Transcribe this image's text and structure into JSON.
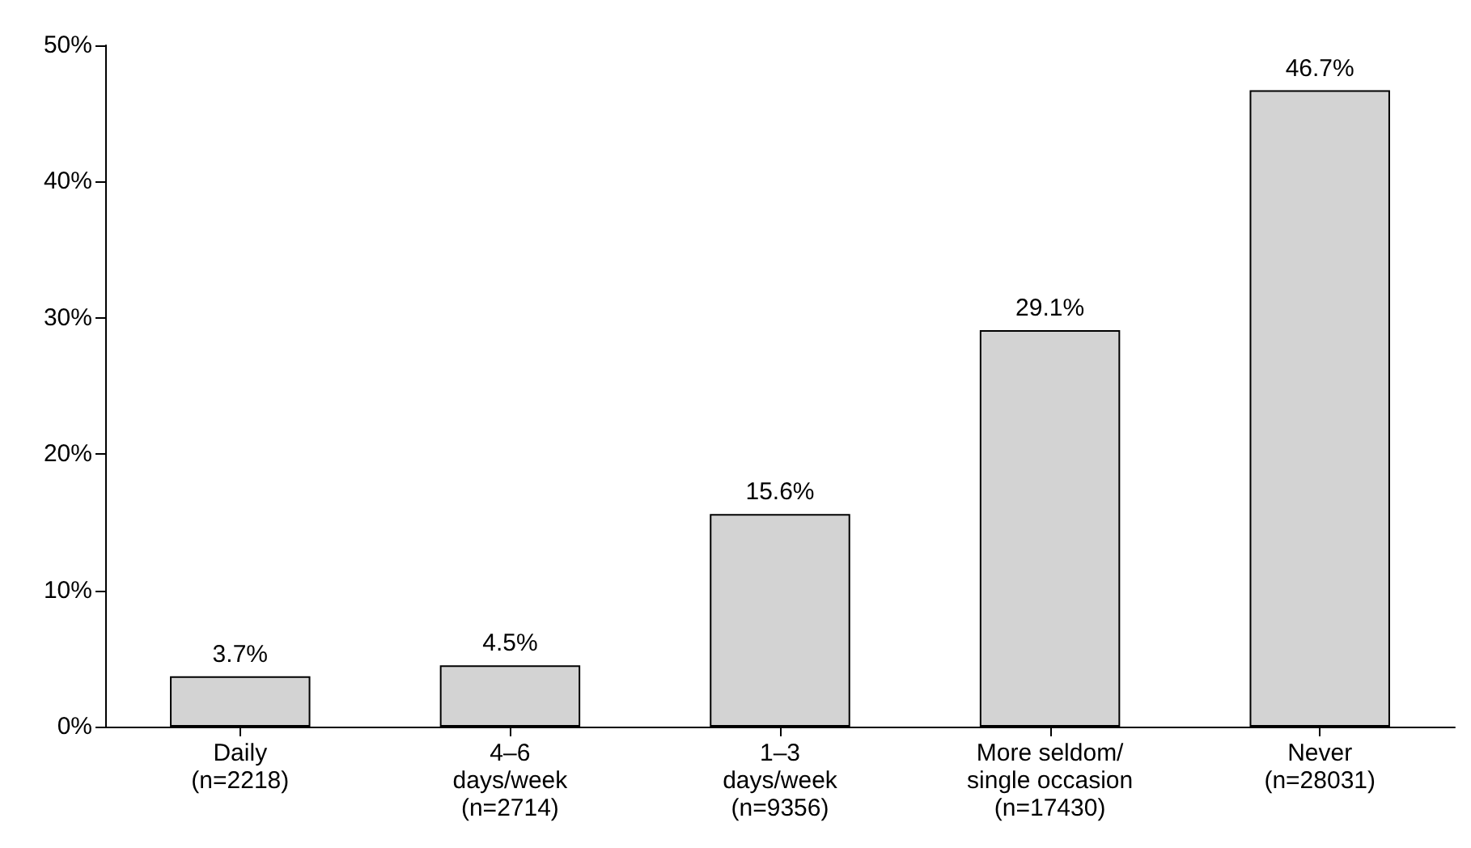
{
  "chart_data": {
    "type": "bar",
    "categories": [
      "Daily\n(n=2218)",
      "4–6\ndays/week\n(n=2714)",
      "1–3\ndays/week\n(n=9356)",
      "More seldom/\nsingle occasion\n(n=17430)",
      "Never\n(n=28031)"
    ],
    "values": [
      3.7,
      4.5,
      15.6,
      29.1,
      46.7
    ],
    "value_labels": [
      "3.7%",
      "4.5%",
      "15.6%",
      "29.1%",
      "46.7%"
    ],
    "color": "#d3d3d3",
    "ylim": [
      0,
      50
    ],
    "yticks": [
      {
        "value": 0,
        "label": "0%"
      },
      {
        "value": 10,
        "label": "10%"
      },
      {
        "value": 20,
        "label": "20%"
      },
      {
        "value": 30,
        "label": "30%"
      },
      {
        "value": 40,
        "label": "40%"
      },
      {
        "value": 50,
        "label": "50%"
      }
    ],
    "grid": false
  }
}
